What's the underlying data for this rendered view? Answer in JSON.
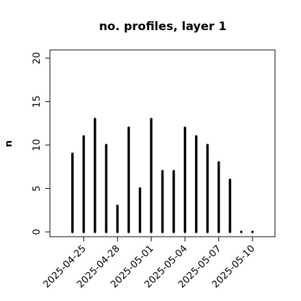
{
  "chart_data": {
    "type": "bar",
    "title": "no. profiles, layer 1",
    "y_label": "n",
    "x": [
      "2025-04-24",
      "2025-04-25",
      "2025-04-26",
      "2025-04-27",
      "2025-04-28",
      "2025-04-29",
      "2025-04-30",
      "2025-05-01",
      "2025-05-02",
      "2025-05-03",
      "2025-05-04",
      "2025-05-05",
      "2025-05-06",
      "2025-05-07",
      "2025-05-08",
      "2025-05-09",
      "2025-05-10"
    ],
    "values": [
      9,
      11,
      13,
      10,
      3,
      12,
      5,
      13,
      7,
      7,
      12,
      11,
      10,
      8,
      6,
      0,
      0
    ],
    "color": "#000000",
    "xlim": [
      "2025-04-22",
      "2025-05-12"
    ],
    "xticks": [
      "2025-04-25",
      "2025-04-28",
      "2025-05-01",
      "2025-05-04",
      "2025-05-07",
      "2025-05-10"
    ],
    "highlight_tick": "2025-05-01",
    "highlight_color": "#2e8b2e",
    "ylim": [
      -0.55,
      20.95
    ],
    "yticks": [
      0,
      5,
      10,
      15,
      20
    ]
  }
}
